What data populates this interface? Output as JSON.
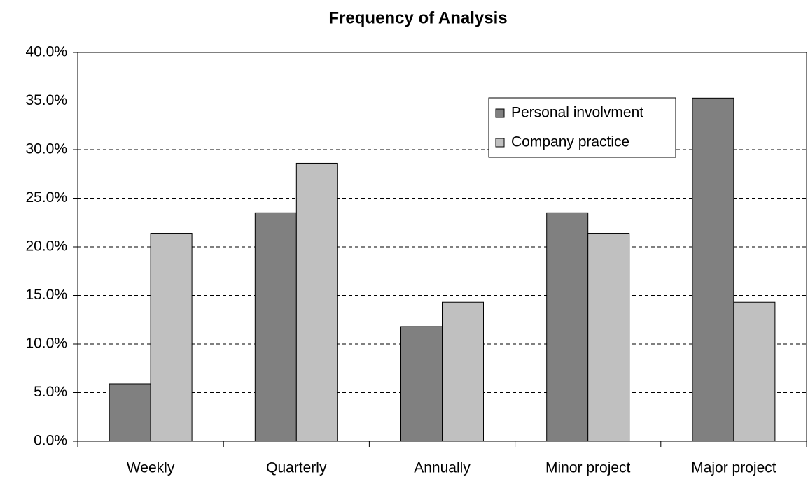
{
  "chart_data": {
    "type": "bar",
    "title": "Frequency of Analysis",
    "categories": [
      "Weekly",
      "Quarterly",
      "Annually",
      "Minor project",
      "Major project"
    ],
    "series": [
      {
        "name": "Personal involvment",
        "color": "#808080",
        "values": [
          5.9,
          23.5,
          11.8,
          23.5,
          35.3
        ]
      },
      {
        "name": "Company practice",
        "color": "#c0c0c0",
        "values": [
          21.4,
          28.6,
          14.3,
          21.4,
          14.3
        ]
      }
    ],
    "ylim": [
      0,
      40
    ],
    "yticks": [
      {
        "value": 0,
        "label": "0.0%"
      },
      {
        "value": 5,
        "label": "5.0%"
      },
      {
        "value": 10,
        "label": "10.0%"
      },
      {
        "value": 15,
        "label": "15.0%"
      },
      {
        "value": 20,
        "label": "20.0%"
      },
      {
        "value": 25,
        "label": "25.0%"
      },
      {
        "value": 30,
        "label": "30.0%"
      },
      {
        "value": 35,
        "label": "35.0%"
      },
      {
        "value": 40,
        "label": "40.0%"
      }
    ],
    "grid": true,
    "legend_position": "upper right"
  }
}
